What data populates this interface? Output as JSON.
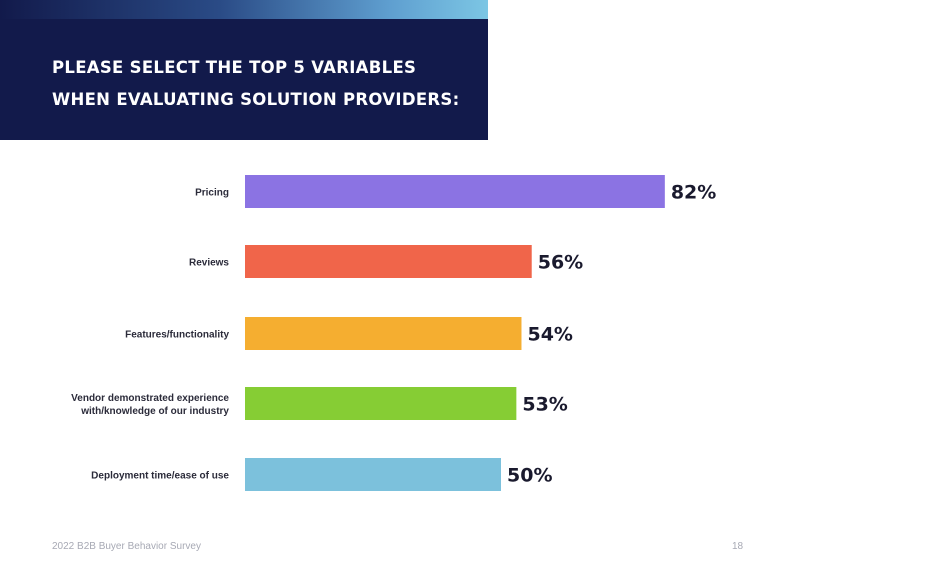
{
  "header": {
    "title": "PLEASE SELECT THE TOP 5 VARIABLES WHEN EVALUATING SOLUTION PROVIDERS:"
  },
  "footer": {
    "source": "2022 B2B Buyer Behavior Survey",
    "page_number": "18"
  },
  "chart_data": {
    "type": "bar",
    "orientation": "horizontal",
    "title": "PLEASE SELECT THE TOP 5 VARIABLES WHEN EVALUATING SOLUTION PROVIDERS:",
    "xlabel": "",
    "ylabel": "",
    "xlim": [
      0,
      100
    ],
    "grid": false,
    "categories": [
      [
        "Pricing"
      ],
      [
        "Reviews"
      ],
      [
        "Features/functionality"
      ],
      [
        "Vendor demonstrated experience",
        "with/knowledge of our industry"
      ],
      [
        "Deployment time/ease of use"
      ]
    ],
    "values": [
      82,
      56,
      54,
      53,
      50
    ],
    "value_labels": [
      "82%",
      "56%",
      "54%",
      "53%",
      "50%"
    ],
    "colors": [
      "#8b73e3",
      "#f0654a",
      "#f5ae30",
      "#86cd34",
      "#7cc1dc"
    ]
  }
}
